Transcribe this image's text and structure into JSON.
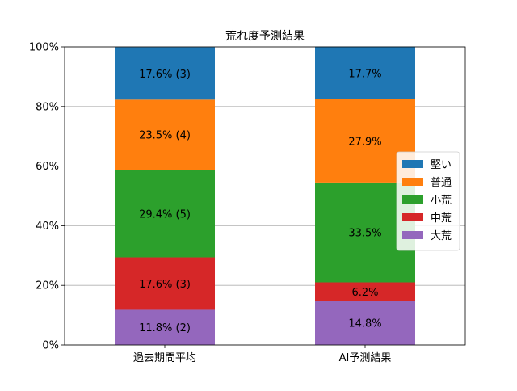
{
  "chart_data": {
    "type": "bar",
    "stacked": true,
    "title": "荒れ度予測結果",
    "xlabel": "",
    "ylabel": "",
    "categories": [
      "過去期間平均",
      "AI予測結果"
    ],
    "ylim": [
      0,
      100
    ],
    "yticks": [
      0,
      20,
      40,
      60,
      80,
      100
    ],
    "ytick_labels": [
      "0%",
      "20%",
      "40%",
      "60%",
      "80%",
      "100%"
    ],
    "grid": "horizontal",
    "legend_position": "center-right",
    "series": [
      {
        "name": "大荒",
        "color": "#9467bd",
        "values": [
          11.8,
          14.8
        ],
        "labels": [
          "11.8% (2)",
          "14.8%"
        ]
      },
      {
        "name": "中荒",
        "color": "#d62728",
        "values": [
          17.6,
          6.2
        ],
        "labels": [
          "17.6% (3)",
          "6.2%"
        ]
      },
      {
        "name": "小荒",
        "color": "#2ca02c",
        "values": [
          29.4,
          33.5
        ],
        "labels": [
          "29.4% (5)",
          "33.5%"
        ]
      },
      {
        "name": "普通",
        "color": "#ff7f0e",
        "values": [
          23.5,
          27.9
        ],
        "labels": [
          "23.5% (4)",
          "27.9%"
        ]
      },
      {
        "name": "堅い",
        "color": "#1f77b4",
        "values": [
          17.6,
          17.7
        ],
        "labels": [
          "17.6% (3)",
          "17.7%"
        ]
      }
    ],
    "legend_order": [
      "堅い",
      "普通",
      "小荒",
      "中荒",
      "大荒"
    ]
  }
}
